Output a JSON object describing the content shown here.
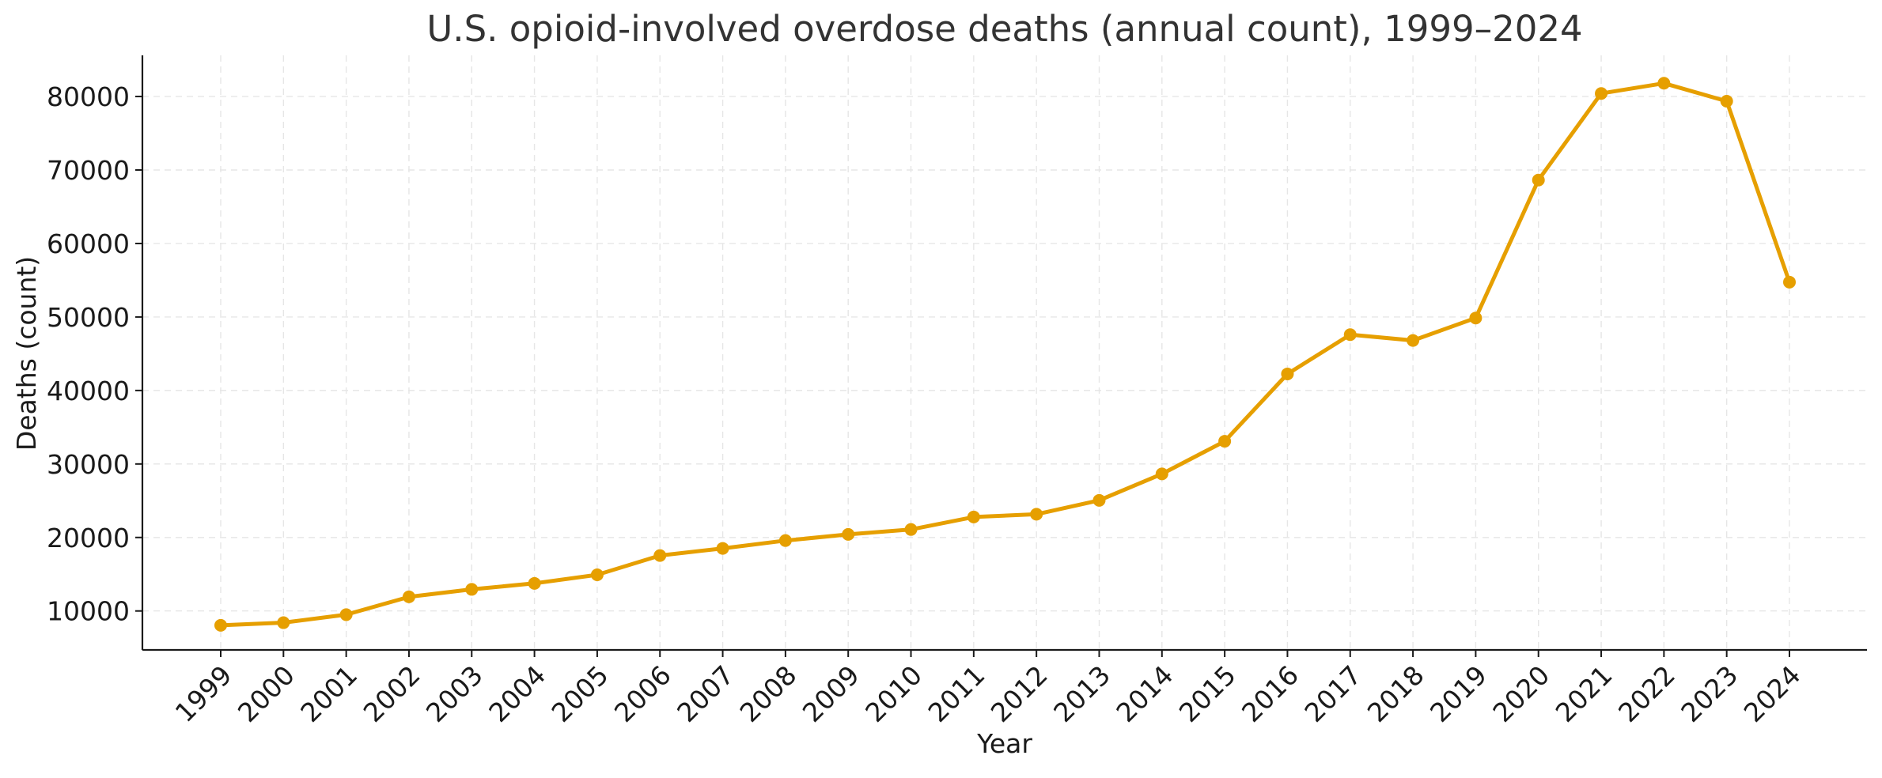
{
  "chart_data": {
    "type": "line",
    "title": "U.S. opioid-involved overdose deaths (annual count), 1999–2024",
    "xlabel": "Year",
    "ylabel": "Deaths (count)",
    "x": [
      "1999",
      "2000",
      "2001",
      "2002",
      "2003",
      "2004",
      "2005",
      "2006",
      "2007",
      "2008",
      "2009",
      "2010",
      "2011",
      "2012",
      "2013",
      "2014",
      "2015",
      "2016",
      "2017",
      "2018",
      "2019",
      "2020",
      "2021",
      "2022",
      "2023",
      "2024"
    ],
    "series": [
      {
        "values": [
          8050,
          8407,
          9496,
          11920,
          12940,
          13756,
          14918,
          17545,
          18516,
          19582,
          20422,
          21089,
          22784,
          23166,
          25052,
          28647,
          33091,
          42249,
          47600,
          46802,
          49860,
          68630,
          80411,
          81806,
          79358,
          54743
        ],
        "color": "#E69F00"
      }
    ],
    "y_ticks": [
      10000,
      20000,
      30000,
      40000,
      50000,
      60000,
      70000,
      80000
    ],
    "ylim": [
      4700,
      85600
    ],
    "grid": true,
    "legend": "none"
  }
}
